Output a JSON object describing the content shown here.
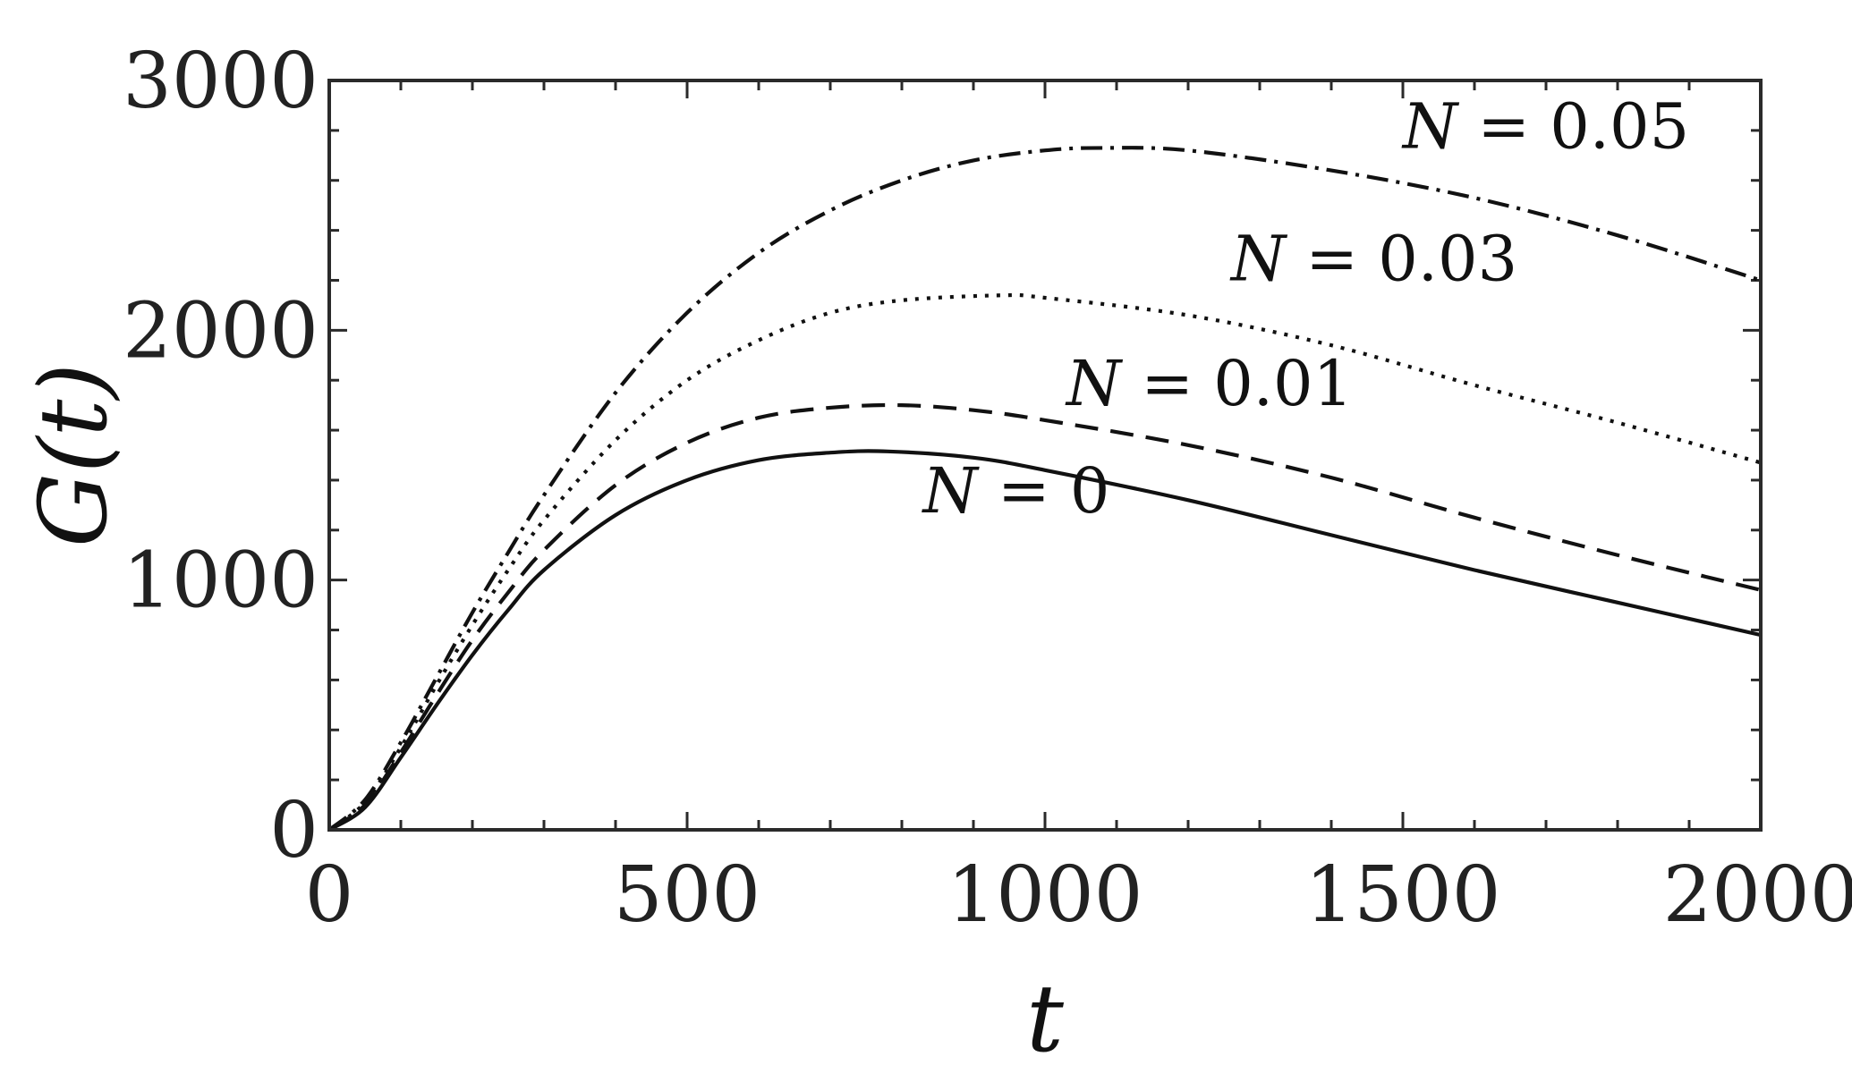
{
  "chart_data": {
    "type": "line",
    "title": "",
    "xlabel": "t",
    "ylabel": "G(t)",
    "xlim": [
      0,
      2000
    ],
    "ylim": [
      0,
      3000
    ],
    "xticks": [
      0,
      500,
      1000,
      1500,
      2000
    ],
    "yticks": [
      0,
      1000,
      2000,
      3000
    ],
    "grid": false,
    "legend": "none",
    "annotations": [
      {
        "text": "N = 0.05",
        "x": 1700,
        "y": 2730
      },
      {
        "text": "N = 0.03",
        "x": 1460,
        "y": 2200
      },
      {
        "text": "N = 0.01",
        "x": 1230,
        "y": 1700
      },
      {
        "text": "N = 0",
        "x": 960,
        "y": 1270
      }
    ],
    "series": [
      {
        "style": "solid",
        "x": [
          0,
          50,
          100,
          150,
          200,
          250,
          300,
          400,
          500,
          600,
          700,
          780,
          900,
          1000,
          1200,
          1400,
          1600,
          1800,
          2000
        ],
        "y": [
          0,
          90,
          290,
          500,
          700,
          880,
          1040,
          1260,
          1400,
          1480,
          1510,
          1515,
          1490,
          1440,
          1320,
          1180,
          1040,
          910,
          780
        ]
      },
      {
        "style": "dashed",
        "x": [
          0,
          50,
          100,
          150,
          200,
          250,
          300,
          400,
          500,
          600,
          700,
          800,
          900,
          1000,
          1200,
          1400,
          1600,
          1800,
          2000
        ],
        "y": [
          0,
          100,
          310,
          540,
          760,
          950,
          1120,
          1380,
          1550,
          1650,
          1690,
          1700,
          1680,
          1640,
          1540,
          1410,
          1250,
          1100,
          960
        ]
      },
      {
        "style": "dotted",
        "x": [
          0,
          50,
          100,
          150,
          200,
          250,
          300,
          400,
          500,
          600,
          700,
          800,
          940,
          1000,
          1200,
          1400,
          1600,
          1800,
          2000
        ],
        "y": [
          0,
          110,
          330,
          580,
          820,
          1040,
          1240,
          1560,
          1800,
          1960,
          2070,
          2120,
          2140,
          2130,
          2060,
          1940,
          1780,
          1630,
          1470
        ]
      },
      {
        "style": "dashdot",
        "x": [
          0,
          50,
          100,
          150,
          200,
          250,
          300,
          400,
          500,
          600,
          700,
          800,
          900,
          1000,
          1080,
          1200,
          1400,
          1600,
          1800,
          2000
        ],
        "y": [
          0,
          120,
          350,
          610,
          870,
          1110,
          1340,
          1750,
          2070,
          2310,
          2480,
          2600,
          2680,
          2720,
          2730,
          2720,
          2640,
          2530,
          2380,
          2200
        ]
      }
    ]
  }
}
